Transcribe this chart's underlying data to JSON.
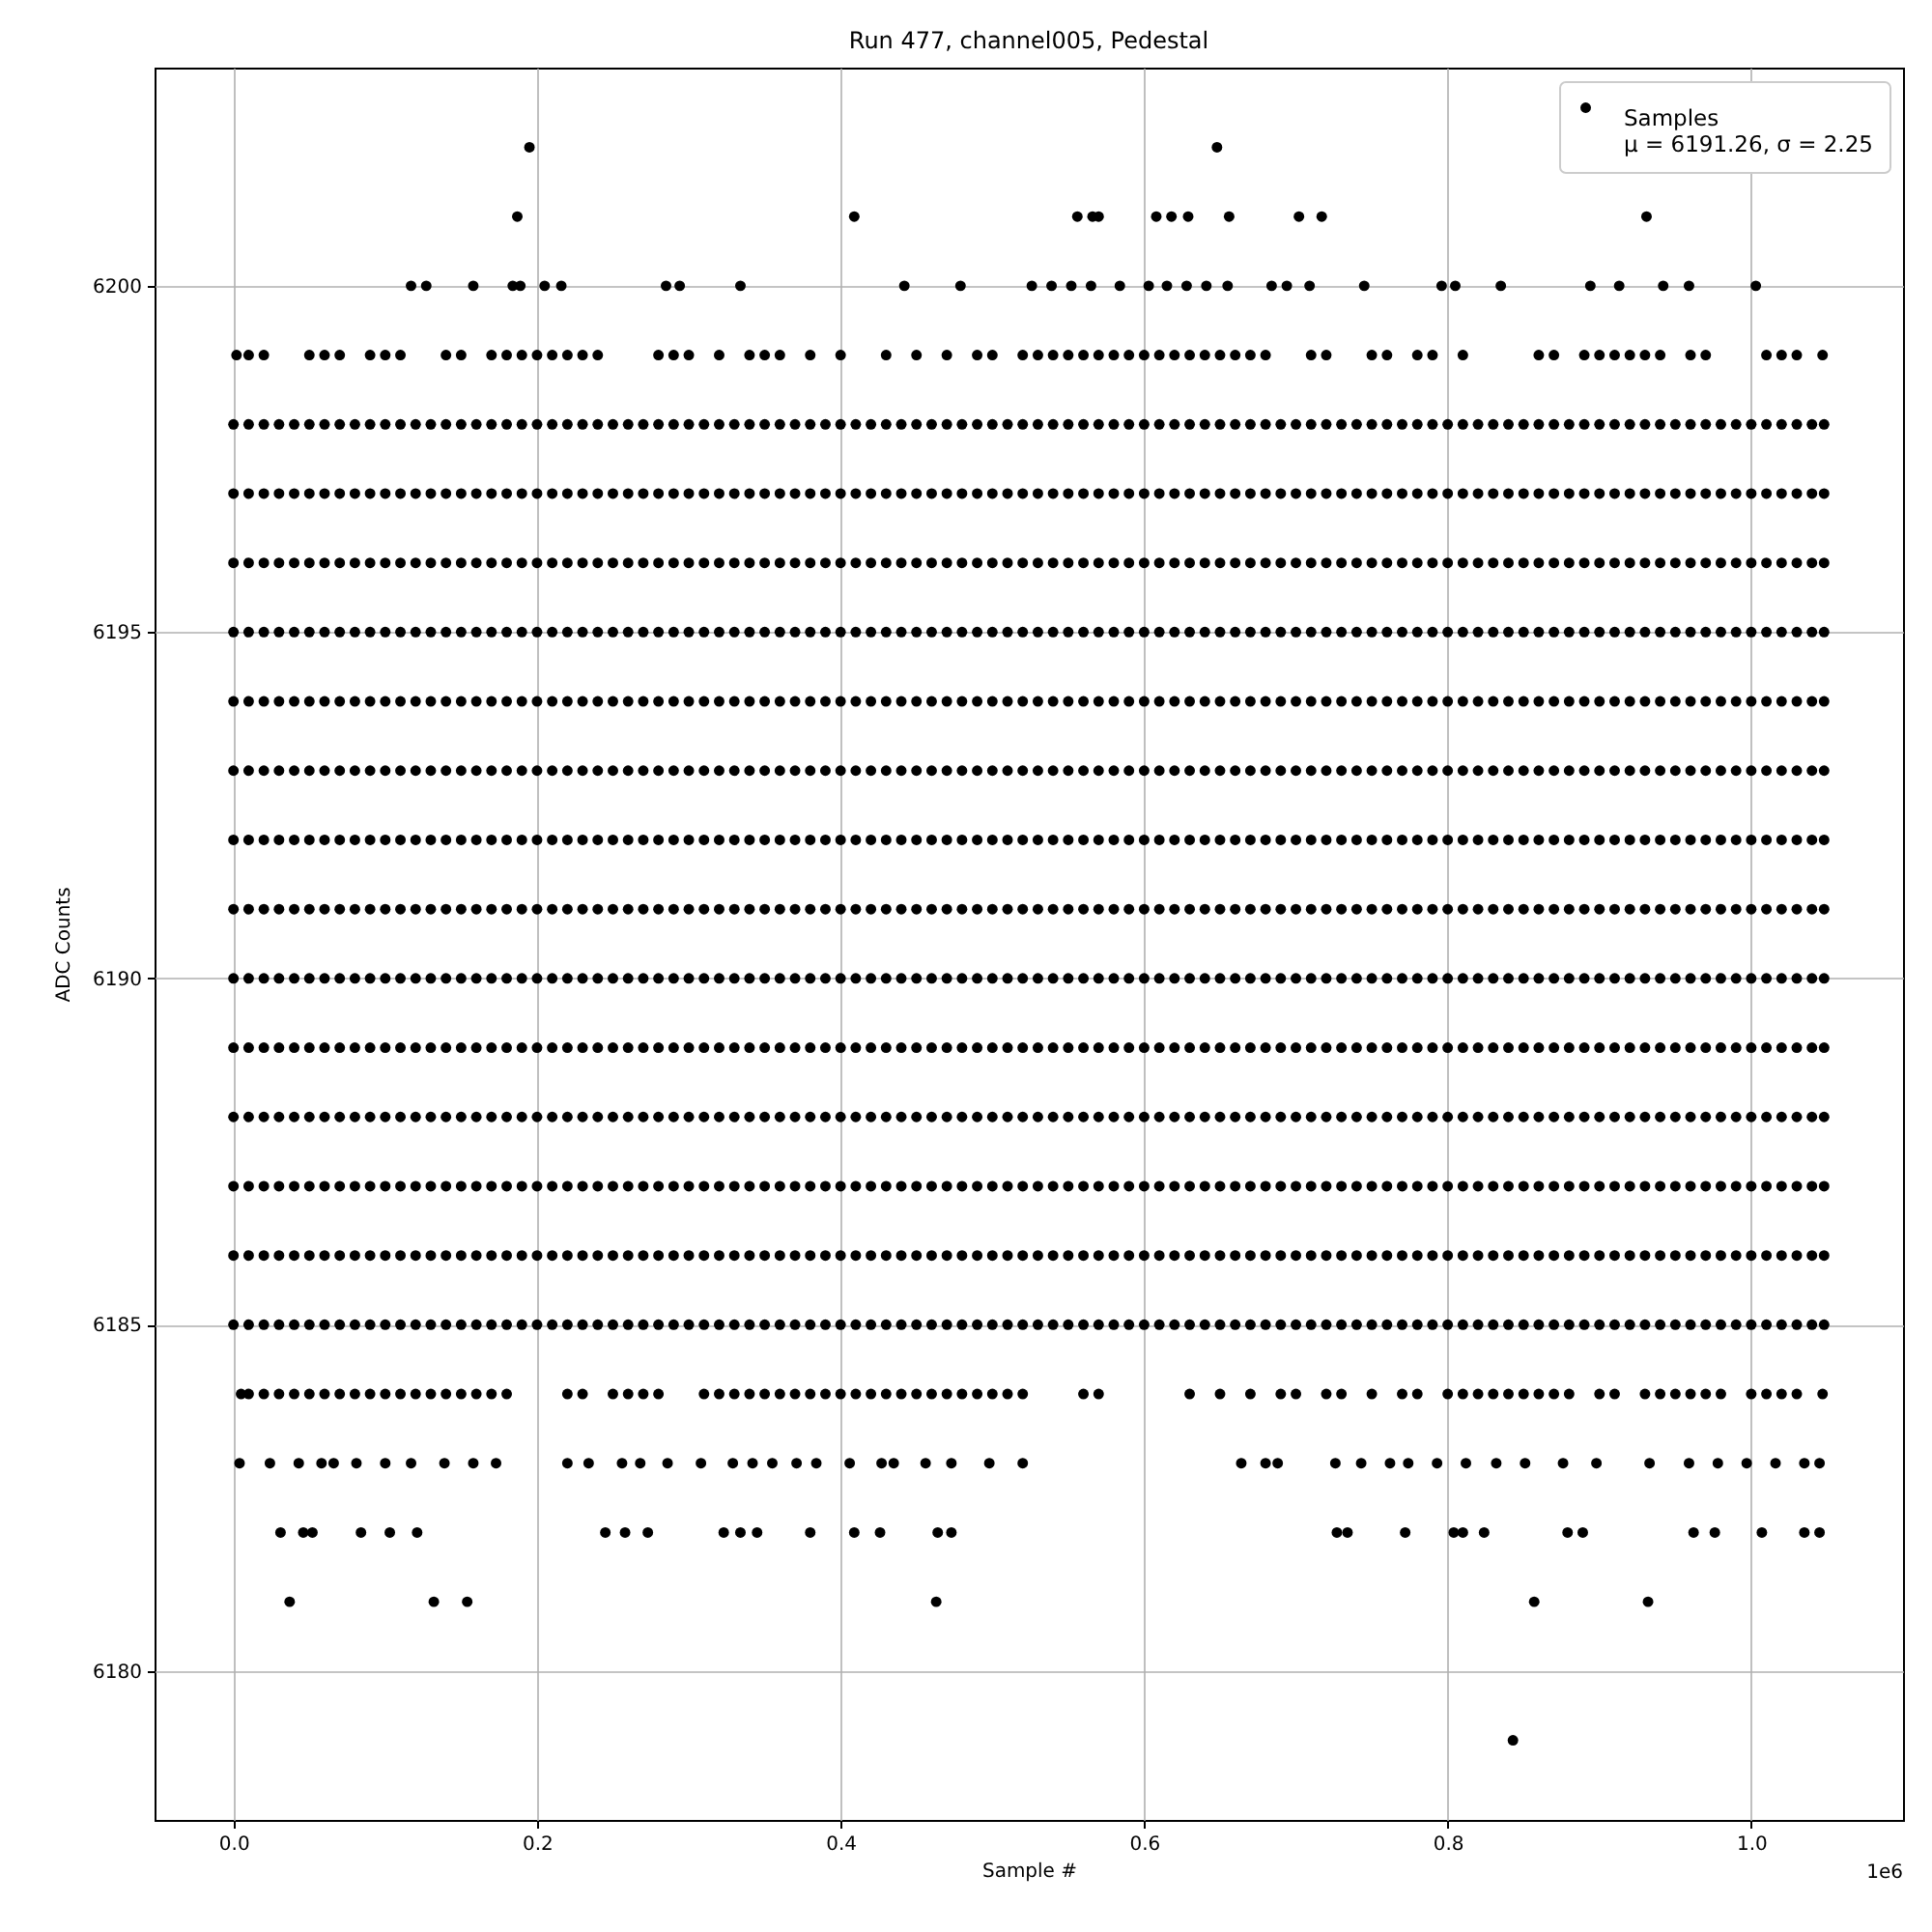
{
  "chart_data": {
    "type": "scatter",
    "title": "Run 477, channel005, Pedestal",
    "xlabel": "Sample #",
    "ylabel": "ADC Counts",
    "annotations": [
      "1e6"
    ],
    "xlim": [
      -0.052,
      1.1
    ],
    "ylim": [
      6177.85,
      6203.15
    ],
    "xticks": [
      {
        "value": 0,
        "label": "0.0"
      },
      {
        "value": 0.2,
        "label": "0.2"
      },
      {
        "value": 0.4,
        "label": "0.4"
      },
      {
        "value": 0.6,
        "label": "0.6"
      },
      {
        "value": 0.8,
        "label": "0.8"
      },
      {
        "value": 1,
        "label": "1.0"
      }
    ],
    "yticks": [
      6180,
      6185,
      6190,
      6195,
      6200
    ],
    "grid": true,
    "legend": "top right",
    "marker": "circle",
    "x": [
      0,
      0.01,
      0.02,
      0.03,
      0.04,
      0.05,
      0.06,
      0.07,
      0.08,
      0.09,
      0.1,
      0.11,
      0.12,
      0.13,
      0.14,
      0.15,
      0.16,
      0.17,
      0.18,
      0.19,
      0.2,
      0.21,
      0.22,
      0.23,
      0.24,
      0.25,
      0.26,
      0.27,
      0.28,
      0.29,
      0.3,
      0.31,
      0.32,
      0.33,
      0.34,
      0.35,
      0.36,
      0.37,
      0.38,
      0.39,
      0.4,
      0.41,
      0.42,
      0.43,
      0.44,
      0.45,
      0.46,
      0.47,
      0.48,
      0.49,
      0.5,
      0.51,
      0.52,
      0.53,
      0.54,
      0.55,
      0.56,
      0.57,
      0.58,
      0.59,
      0.6,
      0.61,
      0.62,
      0.63,
      0.64,
      0.65,
      0.66,
      0.67,
      0.68,
      0.69,
      0.7,
      0.71,
      0.72,
      0.73,
      0.74,
      0.75,
      0.76,
      0.77,
      0.78,
      0.79,
      0.8,
      0.81,
      0.82,
      0.83,
      0.84,
      0.85,
      0.86,
      0.87,
      0.88,
      0.89,
      0.9,
      0.91,
      0.92,
      0.93,
      0.94,
      0.95,
      0.96,
      0.97,
      0.98,
      0.99,
      1,
      1.01,
      1.02,
      1.03,
      1.04,
      1.048
    ],
    "series": [
      {
        "name": "Samples\nμ = 6191.26, σ = 2.25",
        "color": "#000000",
        "values": [
          6190,
          6190,
          6190,
          6190,
          6190,
          6190,
          6190,
          6190,
          6190,
          6190,
          6190,
          6190,
          6190,
          6190,
          6190,
          6190,
          6190,
          6190,
          6190,
          6190,
          6190,
          6190,
          6190,
          6190,
          6190,
          6190,
          6190,
          6190,
          6190,
          6190,
          6190,
          6190,
          6190,
          6190,
          6190,
          6190,
          6190,
          6190,
          6190,
          6190,
          6190,
          6190,
          6190,
          6190,
          6190,
          6190,
          6190,
          6190,
          6190,
          6190,
          6190,
          6190,
          6190,
          6190,
          6190,
          6190,
          6190,
          6190,
          6190,
          6190,
          6190,
          6190,
          6190,
          6190,
          6190,
          6190,
          6190,
          6190,
          6190,
          6190,
          6190,
          6190,
          6190,
          6190,
          6190,
          6190,
          6190,
          6190,
          6190,
          6190,
          6190,
          6190,
          6190,
          6190,
          6190,
          6190,
          6190,
          6190,
          6190,
          6190,
          6190,
          6190,
          6190,
          6190,
          6190,
          6190,
          6190,
          6190,
          6190,
          6190,
          6190,
          6190,
          6190,
          6190,
          6190,
          6190
        ]
      },
      {
        "color": "#000000",
        "values": [
          6185,
          6185,
          6185,
          6185,
          6185,
          6185,
          6185,
          6185,
          6185,
          6185,
          6185,
          6185,
          6185,
          6185,
          6185,
          6185,
          6185,
          6185,
          6185,
          6185,
          6185,
          6185,
          6185,
          6185,
          6185,
          6185,
          6185,
          6185,
          6185,
          6185,
          6185,
          6185,
          6185,
          6185,
          6185,
          6185,
          6185,
          6185,
          6185,
          6185,
          6185,
          6185,
          6185,
          6185,
          6185,
          6185,
          6185,
          6185,
          6185,
          6185,
          6185,
          6185,
          6185,
          6185,
          6185,
          6185,
          6185,
          6185,
          6185,
          6185,
          6185,
          6185,
          6185,
          6185,
          6185,
          6185,
          6185,
          6185,
          6185,
          6185,
          6185,
          6185,
          6185,
          6185,
          6185,
          6185,
          6185,
          6185,
          6185,
          6185,
          6185,
          6185,
          6185,
          6185,
          6185,
          6185,
          6185,
          6185,
          6185,
          6185,
          6185,
          6185,
          6185,
          6185,
          6185,
          6185,
          6185,
          6185,
          6185,
          6185,
          6185,
          6185,
          6185,
          6185,
          6185,
          6185
        ]
      },
      {
        "color": "#000000",
        "values": [
          6186,
          6186,
          6186,
          6186,
          6186,
          6186,
          6186,
          6186,
          6186,
          6186,
          6186,
          6186,
          6186,
          6186,
          6186,
          6186,
          6186,
          6186,
          6186,
          6186,
          6186,
          6186,
          6186,
          6186,
          6186,
          6186,
          6186,
          6186,
          6186,
          6186,
          6186,
          6186,
          6186,
          6186,
          6186,
          6186,
          6186,
          6186,
          6186,
          6186,
          6186,
          6186,
          6186,
          6186,
          6186,
          6186,
          6186,
          6186,
          6186,
          6186,
          6186,
          6186,
          6186,
          6186,
          6186,
          6186,
          6186,
          6186,
          6186,
          6186,
          6186,
          6186,
          6186,
          6186,
          6186,
          6186,
          6186,
          6186,
          6186,
          6186,
          6186,
          6186,
          6186,
          6186,
          6186,
          6186,
          6186,
          6186,
          6186,
          6186,
          6186,
          6186,
          6186,
          6186,
          6186,
          6186,
          6186,
          6186,
          6186,
          6186,
          6186,
          6186,
          6186,
          6186,
          6186,
          6186,
          6186,
          6186,
          6186,
          6186,
          6186,
          6186,
          6186,
          6186,
          6186,
          6186
        ]
      },
      {
        "color": "#000000",
        "values": [
          6187,
          6187,
          6187,
          6187,
          6187,
          6187,
          6187,
          6187,
          6187,
          6187,
          6187,
          6187,
          6187,
          6187,
          6187,
          6187,
          6187,
          6187,
          6187,
          6187,
          6187,
          6187,
          6187,
          6187,
          6187,
          6187,
          6187,
          6187,
          6187,
          6187,
          6187,
          6187,
          6187,
          6187,
          6187,
          6187,
          6187,
          6187,
          6187,
          6187,
          6187,
          6187,
          6187,
          6187,
          6187,
          6187,
          6187,
          6187,
          6187,
          6187,
          6187,
          6187,
          6187,
          6187,
          6187,
          6187,
          6187,
          6187,
          6187,
          6187,
          6187,
          6187,
          6187,
          6187,
          6187,
          6187,
          6187,
          6187,
          6187,
          6187,
          6187,
          6187,
          6187,
          6187,
          6187,
          6187,
          6187,
          6187,
          6187,
          6187,
          6187,
          6187,
          6187,
          6187,
          6187,
          6187,
          6187,
          6187,
          6187,
          6187,
          6187,
          6187,
          6187,
          6187,
          6187,
          6187,
          6187,
          6187,
          6187,
          6187,
          6187,
          6187,
          6187,
          6187,
          6187,
          6187
        ]
      },
      {
        "color": "#000000",
        "values": [
          6188,
          6188,
          6188,
          6188,
          6188,
          6188,
          6188,
          6188,
          6188,
          6188,
          6188,
          6188,
          6188,
          6188,
          6188,
          6188,
          6188,
          6188,
          6188,
          6188,
          6188,
          6188,
          6188,
          6188,
          6188,
          6188,
          6188,
          6188,
          6188,
          6188,
          6188,
          6188,
          6188,
          6188,
          6188,
          6188,
          6188,
          6188,
          6188,
          6188,
          6188,
          6188,
          6188,
          6188,
          6188,
          6188,
          6188,
          6188,
          6188,
          6188,
          6188,
          6188,
          6188,
          6188,
          6188,
          6188,
          6188,
          6188,
          6188,
          6188,
          6188,
          6188,
          6188,
          6188,
          6188,
          6188,
          6188,
          6188,
          6188,
          6188,
          6188,
          6188,
          6188,
          6188,
          6188,
          6188,
          6188,
          6188,
          6188,
          6188,
          6188,
          6188,
          6188,
          6188,
          6188,
          6188,
          6188,
          6188,
          6188,
          6188,
          6188,
          6188,
          6188,
          6188,
          6188,
          6188,
          6188,
          6188,
          6188,
          6188,
          6188,
          6188,
          6188,
          6188,
          6188,
          6188
        ]
      },
      {
        "color": "#000000",
        "values": [
          6189,
          6189,
          6189,
          6189,
          6189,
          6189,
          6189,
          6189,
          6189,
          6189,
          6189,
          6189,
          6189,
          6189,
          6189,
          6189,
          6189,
          6189,
          6189,
          6189,
          6189,
          6189,
          6189,
          6189,
          6189,
          6189,
          6189,
          6189,
          6189,
          6189,
          6189,
          6189,
          6189,
          6189,
          6189,
          6189,
          6189,
          6189,
          6189,
          6189,
          6189,
          6189,
          6189,
          6189,
          6189,
          6189,
          6189,
          6189,
          6189,
          6189,
          6189,
          6189,
          6189,
          6189,
          6189,
          6189,
          6189,
          6189,
          6189,
          6189,
          6189,
          6189,
          6189,
          6189,
          6189,
          6189,
          6189,
          6189,
          6189,
          6189,
          6189,
          6189,
          6189,
          6189,
          6189,
          6189,
          6189,
          6189,
          6189,
          6189,
          6189,
          6189,
          6189,
          6189,
          6189,
          6189,
          6189,
          6189,
          6189,
          6189,
          6189,
          6189,
          6189,
          6189,
          6189,
          6189,
          6189,
          6189,
          6189,
          6189,
          6189,
          6189,
          6189,
          6189,
          6189,
          6189
        ]
      },
      {
        "color": "#000000",
        "values": [
          6191,
          6191,
          6191,
          6191,
          6191,
          6191,
          6191,
          6191,
          6191,
          6191,
          6191,
          6191,
          6191,
          6191,
          6191,
          6191,
          6191,
          6191,
          6191,
          6191,
          6191,
          6191,
          6191,
          6191,
          6191,
          6191,
          6191,
          6191,
          6191,
          6191,
          6191,
          6191,
          6191,
          6191,
          6191,
          6191,
          6191,
          6191,
          6191,
          6191,
          6191,
          6191,
          6191,
          6191,
          6191,
          6191,
          6191,
          6191,
          6191,
          6191,
          6191,
          6191,
          6191,
          6191,
          6191,
          6191,
          6191,
          6191,
          6191,
          6191,
          6191,
          6191,
          6191,
          6191,
          6191,
          6191,
          6191,
          6191,
          6191,
          6191,
          6191,
          6191,
          6191,
          6191,
          6191,
          6191,
          6191,
          6191,
          6191,
          6191,
          6191,
          6191,
          6191,
          6191,
          6191,
          6191,
          6191,
          6191,
          6191,
          6191,
          6191,
          6191,
          6191,
          6191,
          6191,
          6191,
          6191,
          6191,
          6191,
          6191,
          6191,
          6191,
          6191,
          6191,
          6191,
          6191
        ]
      },
      {
        "color": "#000000",
        "values": [
          6192,
          6192,
          6192,
          6192,
          6192,
          6192,
          6192,
          6192,
          6192,
          6192,
          6192,
          6192,
          6192,
          6192,
          6192,
          6192,
          6192,
          6192,
          6192,
          6192,
          6192,
          6192,
          6192,
          6192,
          6192,
          6192,
          6192,
          6192,
          6192,
          6192,
          6192,
          6192,
          6192,
          6192,
          6192,
          6192,
          6192,
          6192,
          6192,
          6192,
          6192,
          6192,
          6192,
          6192,
          6192,
          6192,
          6192,
          6192,
          6192,
          6192,
          6192,
          6192,
          6192,
          6192,
          6192,
          6192,
          6192,
          6192,
          6192,
          6192,
          6192,
          6192,
          6192,
          6192,
          6192,
          6192,
          6192,
          6192,
          6192,
          6192,
          6192,
          6192,
          6192,
          6192,
          6192,
          6192,
          6192,
          6192,
          6192,
          6192,
          6192,
          6192,
          6192,
          6192,
          6192,
          6192,
          6192,
          6192,
          6192,
          6192,
          6192,
          6192,
          6192,
          6192,
          6192,
          6192,
          6192,
          6192,
          6192,
          6192,
          6192,
          6192,
          6192,
          6192,
          6192,
          6192
        ]
      },
      {
        "color": "#000000",
        "values": [
          6193,
          6193,
          6193,
          6193,
          6193,
          6193,
          6193,
          6193,
          6193,
          6193,
          6193,
          6193,
          6193,
          6193,
          6193,
          6193,
          6193,
          6193,
          6193,
          6193,
          6193,
          6193,
          6193,
          6193,
          6193,
          6193,
          6193,
          6193,
          6193,
          6193,
          6193,
          6193,
          6193,
          6193,
          6193,
          6193,
          6193,
          6193,
          6193,
          6193,
          6193,
          6193,
          6193,
          6193,
          6193,
          6193,
          6193,
          6193,
          6193,
          6193,
          6193,
          6193,
          6193,
          6193,
          6193,
          6193,
          6193,
          6193,
          6193,
          6193,
          6193,
          6193,
          6193,
          6193,
          6193,
          6193,
          6193,
          6193,
          6193,
          6193,
          6193,
          6193,
          6193,
          6193,
          6193,
          6193,
          6193,
          6193,
          6193,
          6193,
          6193,
          6193,
          6193,
          6193,
          6193,
          6193,
          6193,
          6193,
          6193,
          6193,
          6193,
          6193,
          6193,
          6193,
          6193,
          6193,
          6193,
          6193,
          6193,
          6193,
          6193,
          6193,
          6193,
          6193,
          6193,
          6193
        ]
      },
      {
        "color": "#000000",
        "values": [
          6194,
          6194,
          6194,
          6194,
          6194,
          6194,
          6194,
          6194,
          6194,
          6194,
          6194,
          6194,
          6194,
          6194,
          6194,
          6194,
          6194,
          6194,
          6194,
          6194,
          6194,
          6194,
          6194,
          6194,
          6194,
          6194,
          6194,
          6194,
          6194,
          6194,
          6194,
          6194,
          6194,
          6194,
          6194,
          6194,
          6194,
          6194,
          6194,
          6194,
          6194,
          6194,
          6194,
          6194,
          6194,
          6194,
          6194,
          6194,
          6194,
          6194,
          6194,
          6194,
          6194,
          6194,
          6194,
          6194,
          6194,
          6194,
          6194,
          6194,
          6194,
          6194,
          6194,
          6194,
          6194,
          6194,
          6194,
          6194,
          6194,
          6194,
          6194,
          6194,
          6194,
          6194,
          6194,
          6194,
          6194,
          6194,
          6194,
          6194,
          6194,
          6194,
          6194,
          6194,
          6194,
          6194,
          6194,
          6194,
          6194,
          6194,
          6194,
          6194,
          6194,
          6194,
          6194,
          6194,
          6194,
          6194,
          6194,
          6194,
          6194,
          6194,
          6194,
          6194,
          6194,
          6194
        ]
      },
      {
        "color": "#000000",
        "values": [
          6195,
          6195,
          6195,
          6195,
          6195,
          6195,
          6195,
          6195,
          6195,
          6195,
          6195,
          6195,
          6195,
          6195,
          6195,
          6195,
          6195,
          6195,
          6195,
          6195,
          6195,
          6195,
          6195,
          6195,
          6195,
          6195,
          6195,
          6195,
          6195,
          6195,
          6195,
          6195,
          6195,
          6195,
          6195,
          6195,
          6195,
          6195,
          6195,
          6195,
          6195,
          6195,
          6195,
          6195,
          6195,
          6195,
          6195,
          6195,
          6195,
          6195,
          6195,
          6195,
          6195,
          6195,
          6195,
          6195,
          6195,
          6195,
          6195,
          6195,
          6195,
          6195,
          6195,
          6195,
          6195,
          6195,
          6195,
          6195,
          6195,
          6195,
          6195,
          6195,
          6195,
          6195,
          6195,
          6195,
          6195,
          6195,
          6195,
          6195,
          6195,
          6195,
          6195,
          6195,
          6195,
          6195,
          6195,
          6195,
          6195,
          6195,
          6195,
          6195,
          6195,
          6195,
          6195,
          6195,
          6195,
          6195,
          6195,
          6195,
          6195,
          6195,
          6195,
          6195,
          6195,
          6195
        ]
      },
      {
        "color": "#000000",
        "values": [
          6196,
          6196,
          6196,
          6196,
          6196,
          6196,
          6196,
          6196,
          6196,
          6196,
          6196,
          6196,
          6196,
          6196,
          6196,
          6196,
          6196,
          6196,
          6196,
          6196,
          6196,
          6196,
          6196,
          6196,
          6196,
          6196,
          6196,
          6196,
          6196,
          6196,
          6196,
          6196,
          6196,
          6196,
          6196,
          6196,
          6196,
          6196,
          6196,
          6196,
          6196,
          6196,
          6196,
          6196,
          6196,
          6196,
          6196,
          6196,
          6196,
          6196,
          6196,
          6196,
          6196,
          6196,
          6196,
          6196,
          6196,
          6196,
          6196,
          6196,
          6196,
          6196,
          6196,
          6196,
          6196,
          6196,
          6196,
          6196,
          6196,
          6196,
          6196,
          6196,
          6196,
          6196,
          6196,
          6196,
          6196,
          6196,
          6196,
          6196,
          6196,
          6196,
          6196,
          6196,
          6196,
          6196,
          6196,
          6196,
          6196,
          6196,
          6196,
          6196,
          6196,
          6196,
          6196,
          6196,
          6196,
          6196,
          6196,
          6196,
          6196,
          6196,
          6196,
          6196,
          6196,
          6196
        ]
      },
      {
        "color": "#000000",
        "values": [
          6197,
          6197,
          6197,
          6197,
          6197,
          6197,
          6197,
          6197,
          6197,
          6197,
          6197,
          6197,
          6197,
          6197,
          6197,
          6197,
          6197,
          6197,
          6197,
          6197,
          6197,
          6197,
          6197,
          6197,
          6197,
          6197,
          6197,
          6197,
          6197,
          6197,
          6197,
          6197,
          6197,
          6197,
          6197,
          6197,
          6197,
          6197,
          6197,
          6197,
          6197,
          6197,
          6197,
          6197,
          6197,
          6197,
          6197,
          6197,
          6197,
          6197,
          6197,
          6197,
          6197,
          6197,
          6197,
          6197,
          6197,
          6197,
          6197,
          6197,
          6197,
          6197,
          6197,
          6197,
          6197,
          6197,
          6197,
          6197,
          6197,
          6197,
          6197,
          6197,
          6197,
          6197,
          6197,
          6197,
          6197,
          6197,
          6197,
          6197,
          6197,
          6197,
          6197,
          6197,
          6197,
          6197,
          6197,
          6197,
          6197,
          6197,
          6197,
          6197,
          6197,
          6197,
          6197,
          6197,
          6197,
          6197,
          6197,
          6197,
          6197,
          6197,
          6197,
          6197,
          6197,
          6197
        ]
      },
      {
        "color": "#000000",
        "values": [
          6198,
          6198,
          6198,
          6198,
          6198,
          6198,
          6198,
          6198,
          6198,
          6198,
          6198,
          6198,
          6198,
          6198,
          6198,
          6198,
          6198,
          6198,
          6198,
          6198,
          6198,
          6198,
          6198,
          6198,
          6198,
          6198,
          6198,
          6198,
          6198,
          6198,
          6198,
          6198,
          6198,
          6198,
          6198,
          6198,
          6198,
          6198,
          6198,
          6198,
          6198,
          6198,
          6198,
          6198,
          6198,
          6198,
          6198,
          6198,
          6198,
          6198,
          6198,
          6198,
          6198,
          6198,
          6198,
          6198,
          6198,
          6198,
          6198,
          6198,
          6198,
          6198,
          6198,
          6198,
          6198,
          6198,
          6198,
          6198,
          6198,
          6198,
          6198,
          6198,
          6198,
          6198,
          6198,
          6198,
          6198,
          6198,
          6198,
          6198,
          6198,
          6198,
          6198,
          6198,
          6198,
          6198,
          6198,
          6198,
          6198,
          6198,
          6198,
          6198,
          6198,
          6198,
          6198,
          6198,
          6198,
          6198,
          6198,
          6198,
          6198,
          6198,
          6198,
          6198,
          6198,
          6198
        ]
      },
      {
        "color": "#000000",
        "x": [
          0.002,
          0.01,
          0.02,
          0.05,
          0.06,
          0.07,
          0.09,
          0.1,
          0.11,
          0.14,
          0.15,
          0.17,
          0.18,
          0.19,
          0.2,
          0.21,
          0.22,
          0.23,
          0.24,
          0.28,
          0.29,
          0.3,
          0.32,
          0.34,
          0.35,
          0.36,
          0.38,
          0.4,
          0.43,
          0.45,
          0.47,
          0.49,
          0.5,
          0.52,
          0.53,
          0.54,
          0.55,
          0.56,
          0.57,
          0.58,
          0.59,
          0.6,
          0.61,
          0.62,
          0.63,
          0.64,
          0.65,
          0.66,
          0.67,
          0.68,
          0.71,
          0.72,
          0.75,
          0.76,
          0.78,
          0.79,
          0.81,
          0.86,
          0.87,
          0.89,
          0.9,
          0.91,
          0.92,
          0.93,
          0.94,
          0.96,
          0.97,
          1.01,
          1.02,
          1.03,
          1.047
        ],
        "values": [
          6199,
          6199,
          6199,
          6199,
          6199,
          6199,
          6199,
          6199,
          6199,
          6199,
          6199,
          6199,
          6199,
          6199,
          6199,
          6199,
          6199,
          6199,
          6199,
          6199,
          6199,
          6199,
          6199,
          6199,
          6199,
          6199,
          6199,
          6199,
          6199,
          6199,
          6199,
          6199,
          6199,
          6199,
          6199,
          6199,
          6199,
          6199,
          6199,
          6199,
          6199,
          6199,
          6199,
          6199,
          6199,
          6199,
          6199,
          6199,
          6199,
          6199,
          6199,
          6199,
          6199,
          6199,
          6199,
          6199,
          6199,
          6199,
          6199,
          6199,
          6199,
          6199,
          6199,
          6199,
          6199,
          6199,
          6199,
          6199,
          6199,
          6199,
          6199
        ]
      },
      {
        "color": "#000000",
        "x": [
          0.117,
          0.127,
          0.158,
          0.184,
          0.189,
          0.205,
          0.216,
          0.285,
          0.294,
          0.334,
          0.442,
          0.479,
          0.526,
          0.539,
          0.552,
          0.565,
          0.584,
          0.603,
          0.615,
          0.628,
          0.641,
          0.655,
          0.684,
          0.694,
          0.709,
          0.745,
          0.796,
          0.805,
          0.835,
          0.894,
          0.913,
          0.942,
          0.959,
          1.003
        ],
        "values": [
          6200,
          6200,
          6200,
          6200,
          6200,
          6200,
          6200,
          6200,
          6200,
          6200,
          6200,
          6200,
          6200,
          6200,
          6200,
          6200,
          6200,
          6200,
          6200,
          6200,
          6200,
          6200,
          6200,
          6200,
          6200,
          6200,
          6200,
          6200,
          6200,
          6200,
          6200,
          6200,
          6200,
          6200
        ]
      },
      {
        "color": "#000000",
        "x": [
          0.187,
          0.409,
          0.556,
          0.566,
          0.57,
          0.608,
          0.618,
          0.629,
          0.656,
          0.702,
          0.717,
          0.931
        ],
        "values": [
          6201,
          6201,
          6201,
          6201,
          6201,
          6201,
          6201,
          6201,
          6201,
          6201,
          6201,
          6201
        ]
      },
      {
        "color": "#000000",
        "x": [
          0.195,
          0.648
        ],
        "values": [
          6202,
          6202
        ]
      },
      {
        "color": "#000000",
        "x": [
          0.005,
          0.01,
          0.02,
          0.03,
          0.04,
          0.05,
          0.06,
          0.07,
          0.08,
          0.09,
          0.1,
          0.11,
          0.12,
          0.13,
          0.14,
          0.15,
          0.16,
          0.17,
          0.18,
          0.22,
          0.23,
          0.25,
          0.26,
          0.27,
          0.28,
          0.31,
          0.32,
          0.33,
          0.34,
          0.35,
          0.36,
          0.37,
          0.38,
          0.39,
          0.4,
          0.41,
          0.42,
          0.43,
          0.44,
          0.45,
          0.46,
          0.47,
          0.48,
          0.49,
          0.5,
          0.51,
          0.52,
          0.56,
          0.57,
          0.63,
          0.65,
          0.67,
          0.69,
          0.7,
          0.72,
          0.73,
          0.75,
          0.77,
          0.78,
          0.8,
          0.81,
          0.82,
          0.83,
          0.84,
          0.85,
          0.86,
          0.87,
          0.88,
          0.9,
          0.91,
          0.93,
          0.94,
          0.95,
          0.96,
          0.97,
          0.98,
          1,
          1.01,
          1.02,
          1.03,
          1.047
        ],
        "values": [
          6184,
          6184,
          6184,
          6184,
          6184,
          6184,
          6184,
          6184,
          6184,
          6184,
          6184,
          6184,
          6184,
          6184,
          6184,
          6184,
          6184,
          6184,
          6184,
          6184,
          6184,
          6184,
          6184,
          6184,
          6184,
          6184,
          6184,
          6184,
          6184,
          6184,
          6184,
          6184,
          6184,
          6184,
          6184,
          6184,
          6184,
          6184,
          6184,
          6184,
          6184,
          6184,
          6184,
          6184,
          6184,
          6184,
          6184,
          6184,
          6184,
          6184,
          6184,
          6184,
          6184,
          6184,
          6184,
          6184,
          6184,
          6184,
          6184,
          6184,
          6184,
          6184,
          6184,
          6184,
          6184,
          6184,
          6184,
          6184,
          6184,
          6184,
          6184,
          6184,
          6184,
          6184,
          6184,
          6184,
          6184,
          6184,
          6184,
          6184,
          6184
        ]
      },
      {
        "color": "#000000",
        "x": [
          0.004,
          0.024,
          0.043,
          0.058,
          0.066,
          0.081,
          0.1,
          0.117,
          0.139,
          0.158,
          0.173,
          0.22,
          0.234,
          0.256,
          0.268,
          0.286,
          0.308,
          0.329,
          0.342,
          0.355,
          0.371,
          0.384,
          0.406,
          0.427,
          0.435,
          0.456,
          0.473,
          0.498,
          0.52,
          0.664,
          0.68,
          0.688,
          0.726,
          0.743,
          0.762,
          0.774,
          0.793,
          0.812,
          0.832,
          0.851,
          0.876,
          0.898,
          0.933,
          0.959,
          0.978,
          0.997,
          1.016,
          1.035,
          1.045
        ],
        "values": [
          6183,
          6183,
          6183,
          6183,
          6183,
          6183,
          6183,
          6183,
          6183,
          6183,
          6183,
          6183,
          6183,
          6183,
          6183,
          6183,
          6183,
          6183,
          6183,
          6183,
          6183,
          6183,
          6183,
          6183,
          6183,
          6183,
          6183,
          6183,
          6183,
          6183,
          6183,
          6183,
          6183,
          6183,
          6183,
          6183,
          6183,
          6183,
          6183,
          6183,
          6183,
          6183,
          6183,
          6183,
          6183,
          6183,
          6183,
          6183,
          6183
        ]
      },
      {
        "color": "#000000",
        "x": [
          0.031,
          0.046,
          0.052,
          0.084,
          0.103,
          0.121,
          0.245,
          0.258,
          0.273,
          0.323,
          0.334,
          0.345,
          0.38,
          0.409,
          0.426,
          0.464,
          0.473,
          0.727,
          0.734,
          0.772,
          0.804,
          0.81,
          0.824,
          0.879,
          0.889,
          0.962,
          0.976,
          1.007,
          1.035,
          1.045
        ],
        "values": [
          6182,
          6182,
          6182,
          6182,
          6182,
          6182,
          6182,
          6182,
          6182,
          6182,
          6182,
          6182,
          6182,
          6182,
          6182,
          6182,
          6182,
          6182,
          6182,
          6182,
          6182,
          6182,
          6182,
          6182,
          6182,
          6182,
          6182,
          6182,
          6182,
          6182
        ]
      },
      {
        "color": "#000000",
        "x": [
          0.037,
          0.132,
          0.154,
          0.463,
          0.857,
          0.932
        ],
        "values": [
          6181,
          6181,
          6181,
          6181,
          6181,
          6181
        ]
      },
      {
        "color": "#000000",
        "x": [
          0.843
        ],
        "values": [
          6179
        ]
      }
    ]
  }
}
